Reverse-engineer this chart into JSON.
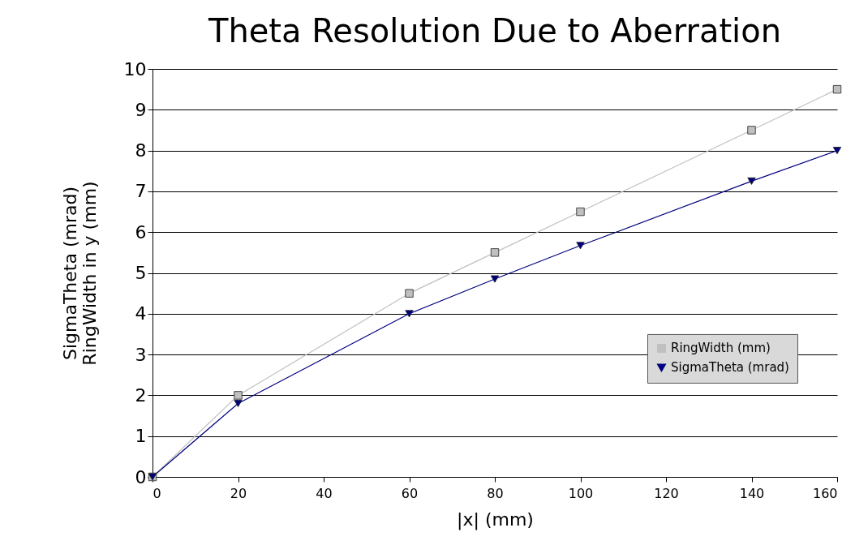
{
  "chart_data": {
    "type": "line",
    "title": "Theta Resolution Due to Aberration",
    "xlabel": "|x| (mm)",
    "ylabel": "SigmaTheta (mrad)\nRingWidth in y (mm)",
    "x": [
      0,
      20,
      60,
      80,
      100,
      140,
      160
    ],
    "series": [
      {
        "name": "RingWidth (mm)",
        "color": "#c0c0c0",
        "marker": "square",
        "values": [
          0,
          2,
          4.5,
          5.5,
          6.5,
          8.5,
          9.5
        ]
      },
      {
        "name": "SigmaTheta (mrad)",
        "color": "#000080",
        "marker": "triangle",
        "values": [
          0,
          1.8,
          4.0,
          4.85,
          5.67,
          7.25,
          8.0
        ]
      }
    ],
    "xlim": [
      0,
      160
    ],
    "xticks": [
      0,
      20,
      40,
      60,
      80,
      100,
      120,
      140,
      160
    ],
    "ylim": [
      0,
      10
    ],
    "yticks": [
      0,
      1,
      2,
      3,
      4,
      5,
      6,
      7,
      8,
      9,
      10
    ],
    "grid": "y",
    "legend": "right"
  }
}
